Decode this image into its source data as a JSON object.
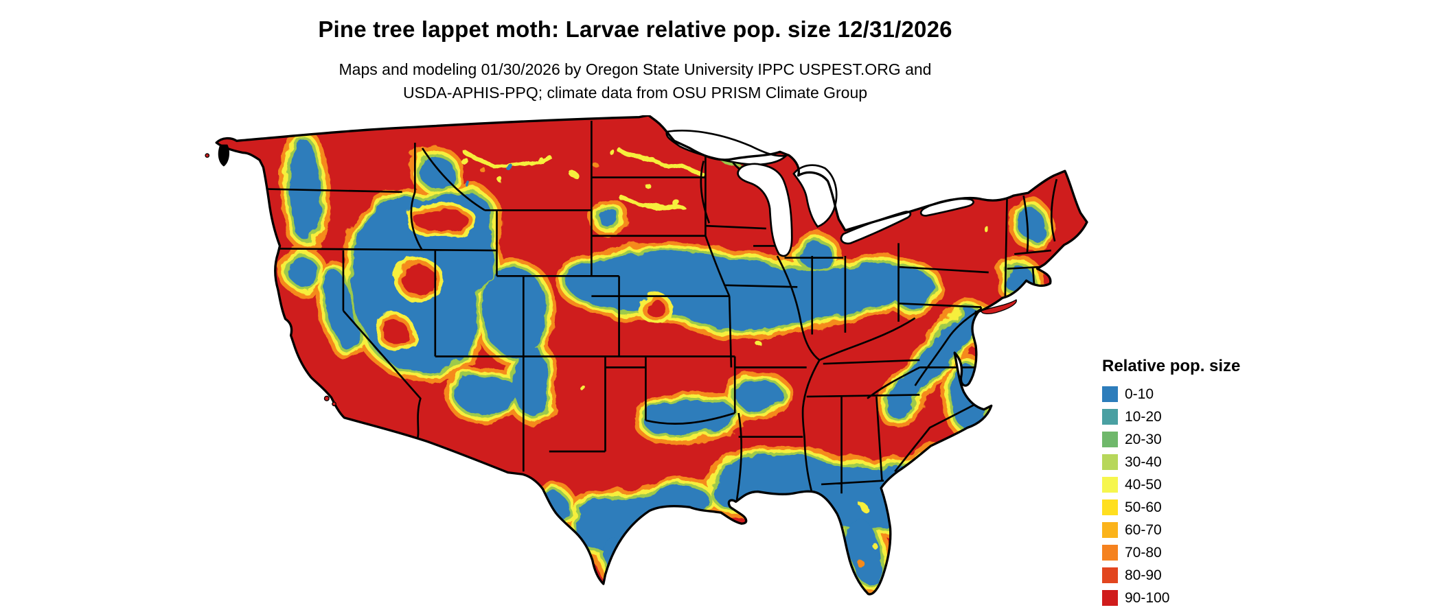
{
  "title": "Pine tree lappet moth: Larvae relative pop. size 12/31/2026",
  "subtitle_lines": [
    "Maps and modeling 01/30/2026 by Oregon State University IPPC USPEST.ORG and",
    "USDA-APHIS-PPQ; climate data from OSU PRISM Climate Group"
  ],
  "legend": {
    "title": "Relative pop. size",
    "items": [
      {
        "label": "0-10",
        "color": "#2d7dbb"
      },
      {
        "label": "10-20",
        "color": "#4aa0a2"
      },
      {
        "label": "20-30",
        "color": "#6fb86b"
      },
      {
        "label": "30-40",
        "color": "#b7d75b"
      },
      {
        "label": "40-50",
        "color": "#f6f64e"
      },
      {
        "label": "50-60",
        "color": "#ffdf1f"
      },
      {
        "label": "60-70",
        "color": "#fbb31a"
      },
      {
        "label": "70-80",
        "color": "#f5821f"
      },
      {
        "label": "80-90",
        "color": "#e2461f"
      },
      {
        "label": "90-100",
        "color": "#d01c1c"
      }
    ]
  },
  "map": {
    "region_label": "Contiguous United States",
    "high_value_color": "#cf1d1d",
    "low_value_color": "#2d7dbb"
  }
}
